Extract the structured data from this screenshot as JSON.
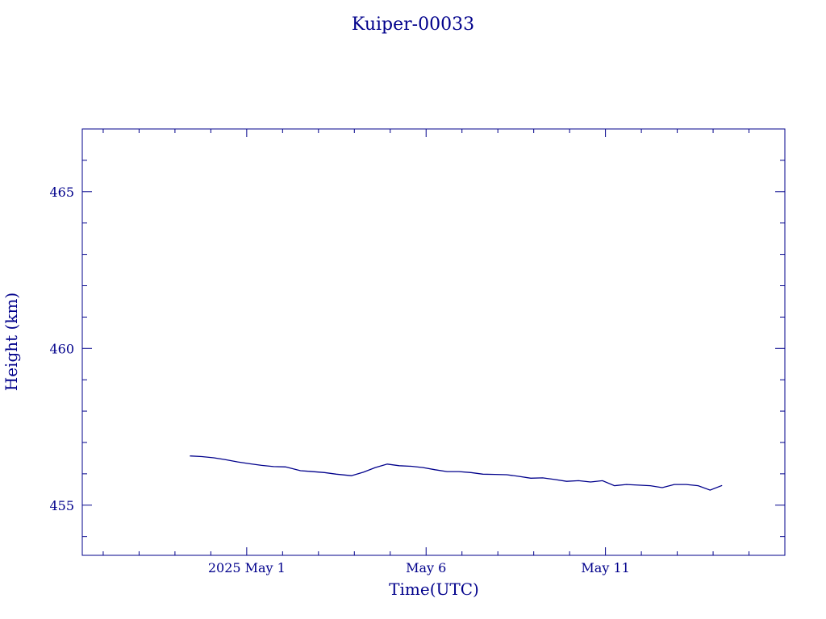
{
  "chart_data": {
    "type": "line",
    "title": "Kuiper-00033",
    "xlabel": "Time(UTC)",
    "ylabel": "Height (km)",
    "xlim": [
      "2025-04-26T10:00",
      "2025-05-16T00:00"
    ],
    "ylim": [
      453.4,
      467.0
    ],
    "x_major_ticks": [
      "2025-05-01",
      "2025-05-06",
      "2025-05-11"
    ],
    "x_tick_labels": [
      "2025 May  1",
      "May  6",
      "May 11"
    ],
    "y_major_ticks": [
      455,
      460,
      465
    ],
    "y_tick_labels": [
      "455",
      "460",
      "465"
    ],
    "grid": false,
    "series": [
      {
        "x": [
          "2025-04-29T10:00",
          "2025-04-29T18:00",
          "2025-04-30T02:00",
          "2025-04-30T10:00",
          "2025-04-30T18:00",
          "2025-05-01T02:00",
          "2025-05-01T10:00",
          "2025-05-01T18:00",
          "2025-05-02T02:00",
          "2025-05-02T12:00",
          "2025-05-02T18:00",
          "2025-05-03T04:00",
          "2025-05-03T12:00",
          "2025-05-03T22:00",
          "2025-05-04T06:00",
          "2025-05-04T14:00",
          "2025-05-04T22:00",
          "2025-05-05T06:00",
          "2025-05-05T14:00",
          "2025-05-05T22:00",
          "2025-05-06T06:00",
          "2025-05-06T14:00",
          "2025-05-06T22:00",
          "2025-05-07T06:00",
          "2025-05-07T14:00",
          "2025-05-07T22:00",
          "2025-05-08T06:00",
          "2025-05-08T14:00",
          "2025-05-08T22:00",
          "2025-05-09T06:00",
          "2025-05-09T14:00",
          "2025-05-09T22:00",
          "2025-05-10T06:00",
          "2025-05-10T14:00",
          "2025-05-10T22:00",
          "2025-05-11T06:00",
          "2025-05-11T14:00",
          "2025-05-11T22:00",
          "2025-05-12T06:00",
          "2025-05-12T14:00",
          "2025-05-12T22:00",
          "2025-05-13T06:00",
          "2025-05-13T14:00",
          "2025-05-13T22:00",
          "2025-05-14T06:00"
        ],
        "y": [
          456.57,
          456.55,
          456.51,
          456.45,
          456.38,
          456.32,
          456.27,
          456.23,
          456.22,
          456.1,
          456.08,
          456.04,
          455.99,
          455.94,
          456.05,
          456.2,
          456.31,
          456.26,
          456.24,
          456.2,
          456.13,
          456.07,
          456.07,
          456.04,
          455.99,
          455.98,
          455.97,
          455.92,
          455.86,
          455.87,
          455.82,
          455.76,
          455.78,
          455.74,
          455.78,
          455.62,
          455.66,
          455.64,
          455.62,
          455.56,
          455.66,
          455.66,
          455.62,
          455.48,
          455.63
        ]
      }
    ]
  }
}
